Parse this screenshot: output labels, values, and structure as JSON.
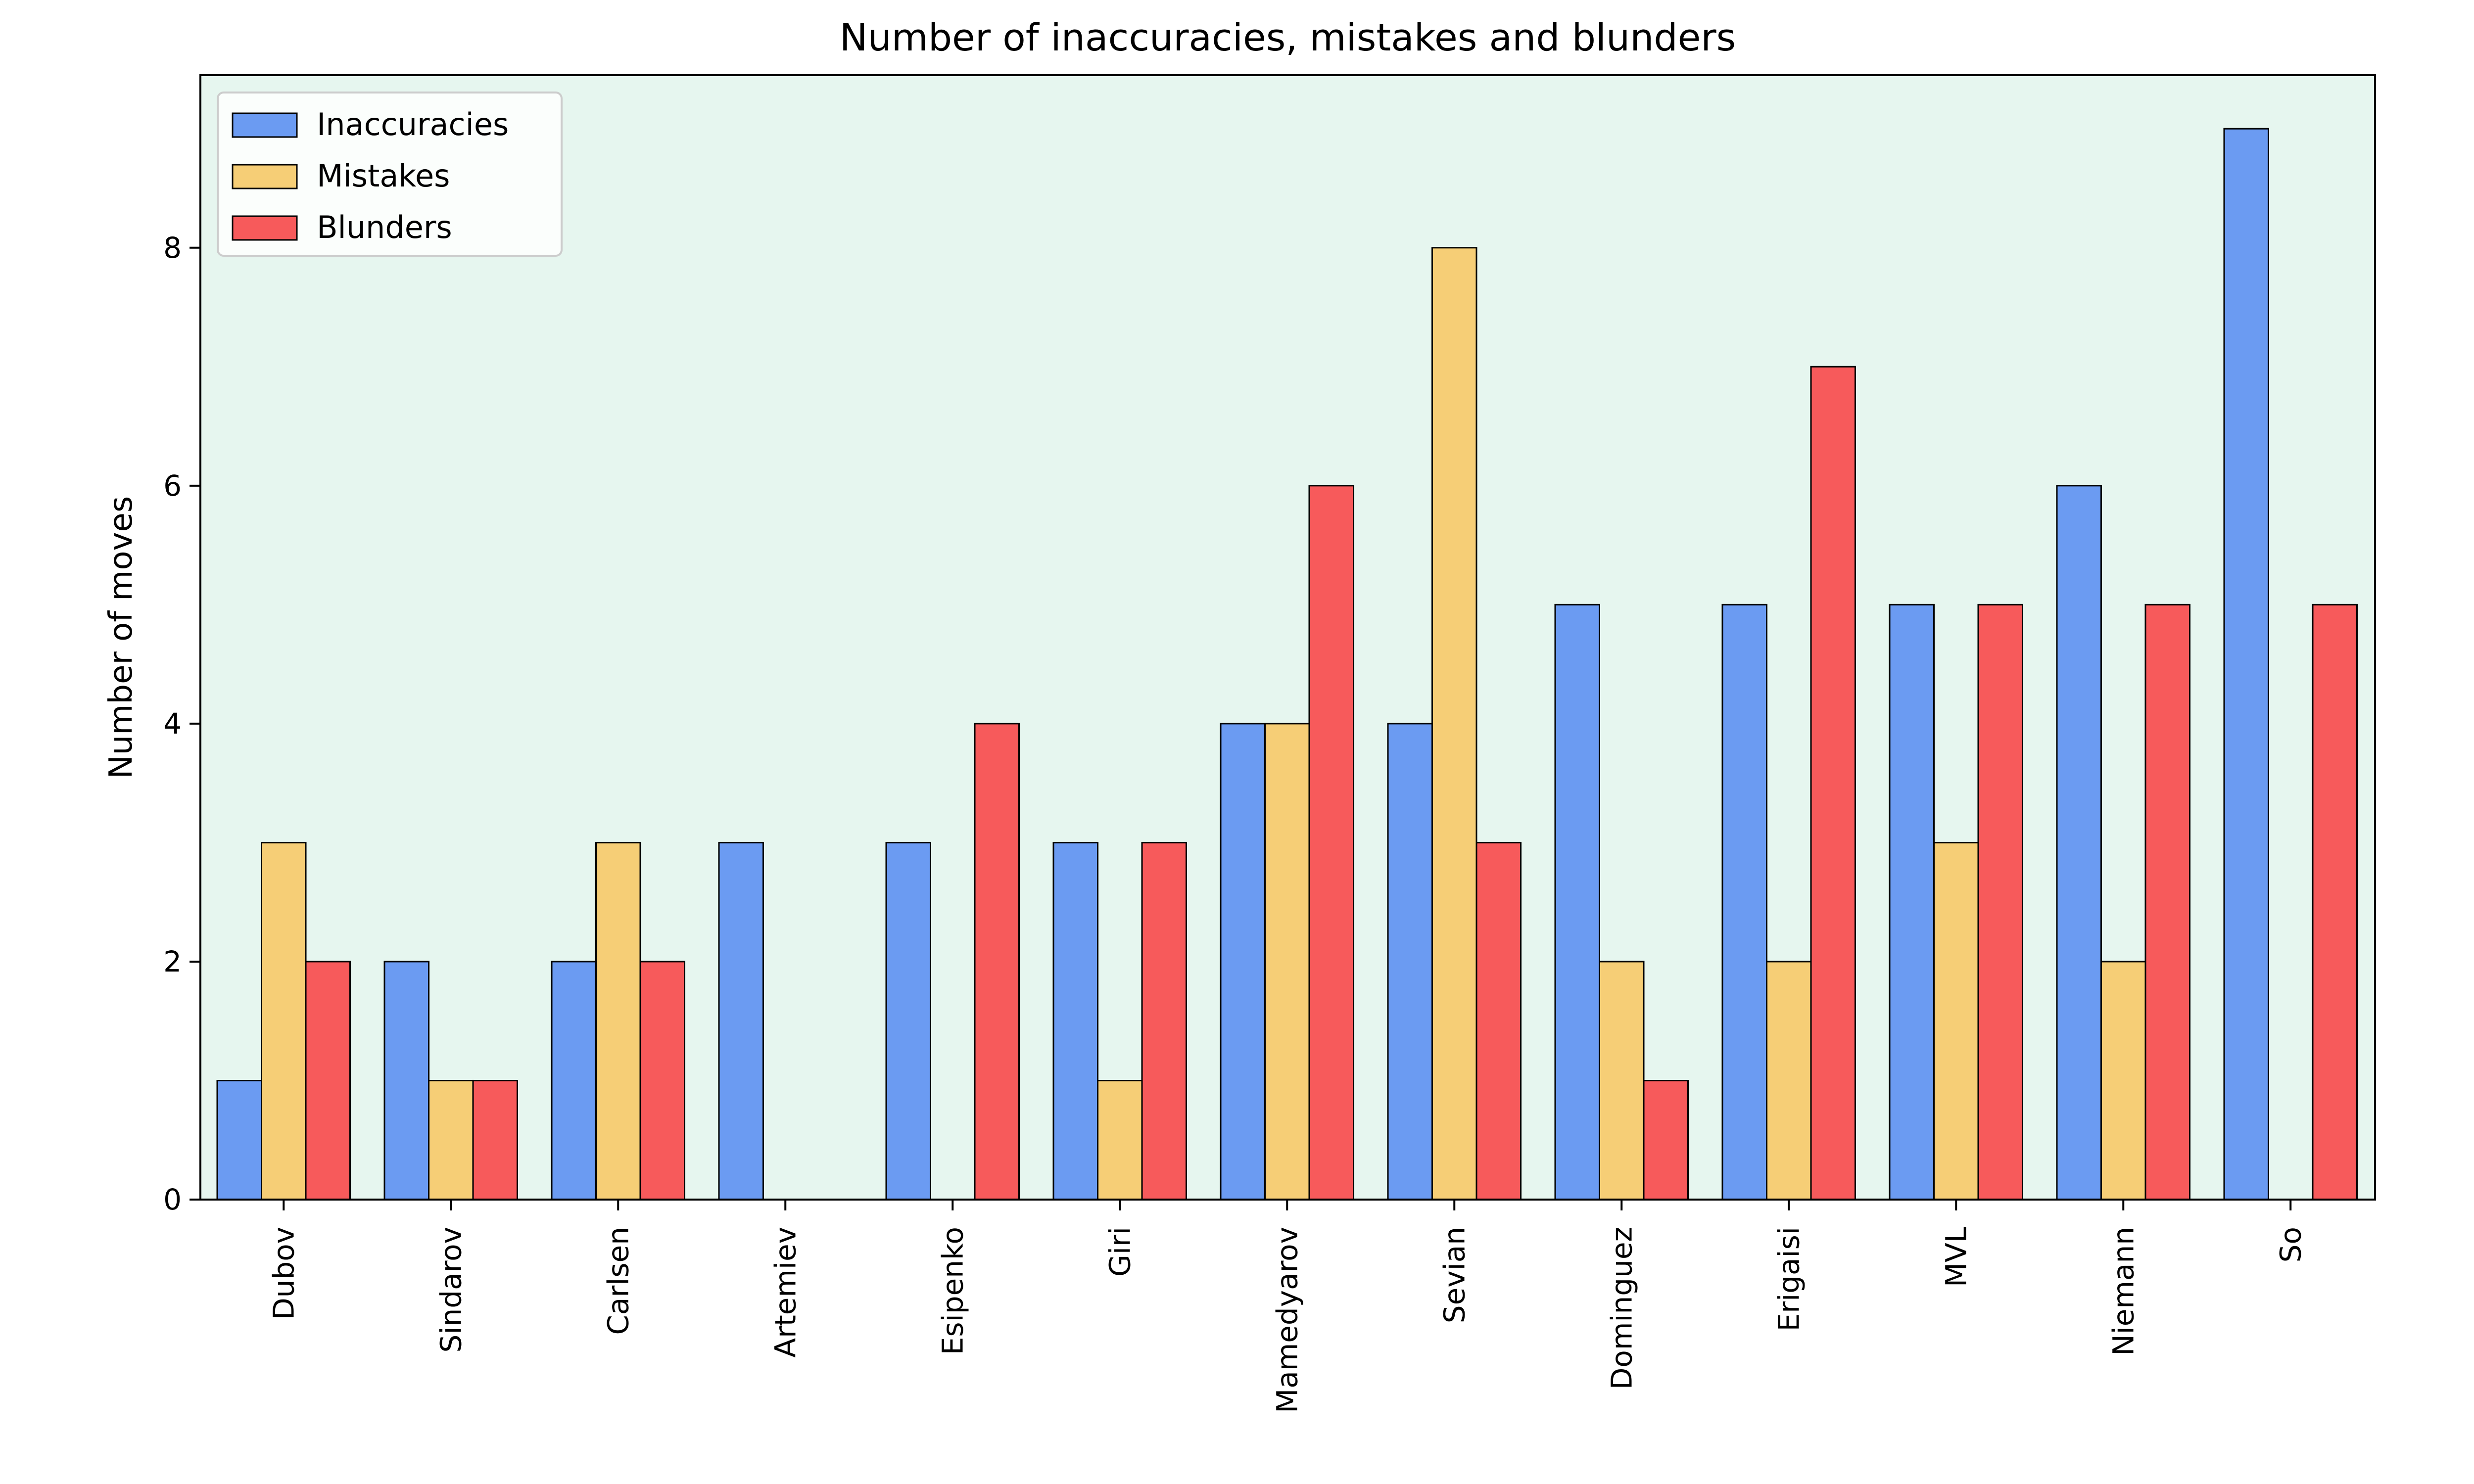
{
  "chart_data": {
    "type": "bar",
    "title": "Number of inaccuracies, mistakes and blunders",
    "xlabel": "",
    "ylabel": "Number of moves",
    "ylim": [
      0,
      9.45
    ],
    "yticks": [
      0,
      2,
      4,
      6,
      8
    ],
    "grid": false,
    "legend_position": "top-left",
    "plot_background": "#e6f6ef",
    "categories": [
      "Dubov",
      "Sindarov",
      "Carlsen",
      "Artemiev",
      "Esipenko",
      "Giri",
      "Mamedyarov",
      "Sevian",
      "Dominguez",
      "Erigaisi",
      "MVL",
      "Niemann",
      "So"
    ],
    "series": [
      {
        "name": "Inaccuracies",
        "color": "#6b9bf2",
        "values": [
          1,
          2,
          2,
          3,
          3,
          3,
          4,
          4,
          5,
          5,
          5,
          6,
          9
        ]
      },
      {
        "name": "Mistakes",
        "color": "#f6ce76",
        "values": [
          3,
          1,
          3,
          0,
          0,
          1,
          4,
          8,
          2,
          2,
          3,
          2,
          0
        ]
      },
      {
        "name": "Blunders",
        "color": "#f75a5b",
        "values": [
          2,
          1,
          2,
          0,
          4,
          3,
          6,
          3,
          1,
          7,
          5,
          5,
          5
        ]
      }
    ]
  }
}
